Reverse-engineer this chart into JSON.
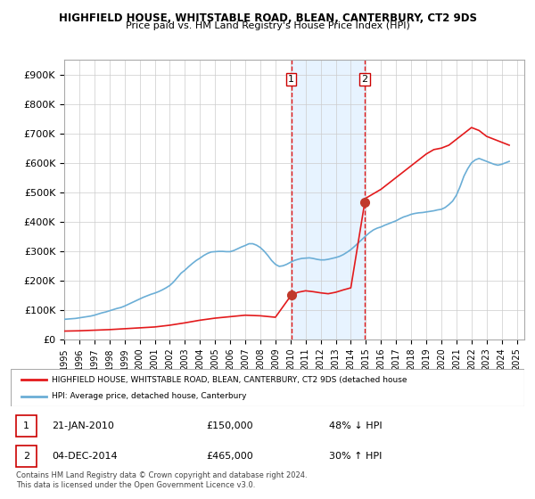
{
  "title": "HIGHFIELD HOUSE, WHITSTABLE ROAD, BLEAN, CANTERBURY, CT2 9DS",
  "subtitle": "Price paid vs. HM Land Registry's House Price Index (HPI)",
  "ylabel_ticks": [
    "£0",
    "£100K",
    "£200K",
    "£300K",
    "£400K",
    "£500K",
    "£600K",
    "£700K",
    "£800K",
    "£900K"
  ],
  "ytick_values": [
    0,
    100000,
    200000,
    300000,
    400000,
    500000,
    600000,
    700000,
    800000,
    900000
  ],
  "ylim": [
    0,
    950000
  ],
  "xlim_start": 1995.0,
  "xlim_end": 2025.5,
  "transaction1_x": 2010.05,
  "transaction1_y": 150000,
  "transaction1_label": "1",
  "transaction2_x": 2014.92,
  "transaction2_y": 465000,
  "transaction2_label": "2",
  "hpi_line_color": "#6baed6",
  "price_line_color": "#e31a1c",
  "transaction_dot_color": "#c0392b",
  "highlight_fill": "#ddeeff",
  "highlight_alpha": 0.35,
  "grid_color": "#cccccc",
  "legend_box_color": "#cc0000",
  "legend1_text": "HIGHFIELD HOUSE, WHITSTABLE ROAD, BLEAN, CANTERBURY, CT2 9DS (detached house",
  "legend2_text": "HPI: Average price, detached house, Canterbury",
  "table_row1": [
    "1",
    "21-JAN-2010",
    "£150,000",
    "48% ↓ HPI"
  ],
  "table_row2": [
    "2",
    "04-DEC-2014",
    "£465,000",
    "30% ↑ HPI"
  ],
  "footer": "Contains HM Land Registry data © Crown copyright and database right 2024.\nThis data is licensed under the Open Government Licence v3.0.",
  "hpi_data_x": [
    1995.0,
    1995.25,
    1995.5,
    1995.75,
    1996.0,
    1996.25,
    1996.5,
    1996.75,
    1997.0,
    1997.25,
    1997.5,
    1997.75,
    1998.0,
    1998.25,
    1998.5,
    1998.75,
    1999.0,
    1999.25,
    1999.5,
    1999.75,
    2000.0,
    2000.25,
    2000.5,
    2000.75,
    2001.0,
    2001.25,
    2001.5,
    2001.75,
    2002.0,
    2002.25,
    2002.5,
    2002.75,
    2003.0,
    2003.25,
    2003.5,
    2003.75,
    2004.0,
    2004.25,
    2004.5,
    2004.75,
    2005.0,
    2005.25,
    2005.5,
    2005.75,
    2006.0,
    2006.25,
    2006.5,
    2006.75,
    2007.0,
    2007.25,
    2007.5,
    2007.75,
    2008.0,
    2008.25,
    2008.5,
    2008.75,
    2009.0,
    2009.25,
    2009.5,
    2009.75,
    2010.0,
    2010.25,
    2010.5,
    2010.75,
    2011.0,
    2011.25,
    2011.5,
    2011.75,
    2012.0,
    2012.25,
    2012.5,
    2012.75,
    2013.0,
    2013.25,
    2013.5,
    2013.75,
    2014.0,
    2014.25,
    2014.5,
    2014.75,
    2015.0,
    2015.25,
    2015.5,
    2015.75,
    2016.0,
    2016.25,
    2016.5,
    2016.75,
    2017.0,
    2017.25,
    2017.5,
    2017.75,
    2018.0,
    2018.25,
    2018.5,
    2018.75,
    2019.0,
    2019.25,
    2019.5,
    2019.75,
    2020.0,
    2020.25,
    2020.5,
    2020.75,
    2021.0,
    2021.25,
    2021.5,
    2021.75,
    2022.0,
    2022.25,
    2022.5,
    2022.75,
    2023.0,
    2023.25,
    2023.5,
    2023.75,
    2024.0,
    2024.25,
    2024.5
  ],
  "hpi_data_y": [
    68000,
    69000,
    70000,
    71000,
    73000,
    75000,
    77000,
    79000,
    82000,
    86000,
    90000,
    93000,
    97000,
    101000,
    105000,
    108000,
    113000,
    119000,
    125000,
    131000,
    137000,
    143000,
    148000,
    153000,
    157000,
    162000,
    168000,
    175000,
    183000,
    195000,
    210000,
    225000,
    235000,
    247000,
    258000,
    268000,
    276000,
    285000,
    292000,
    297000,
    298000,
    299000,
    299000,
    298000,
    298000,
    302000,
    308000,
    314000,
    319000,
    325000,
    325000,
    320000,
    312000,
    300000,
    285000,
    268000,
    255000,
    248000,
    250000,
    255000,
    262000,
    268000,
    272000,
    275000,
    276000,
    277000,
    275000,
    272000,
    270000,
    270000,
    272000,
    275000,
    278000,
    282000,
    288000,
    296000,
    305000,
    316000,
    328000,
    340000,
    352000,
    363000,
    372000,
    378000,
    382000,
    388000,
    393000,
    398000,
    403000,
    410000,
    416000,
    420000,
    425000,
    428000,
    430000,
    431000,
    433000,
    435000,
    437000,
    440000,
    442000,
    448000,
    458000,
    470000,
    490000,
    520000,
    555000,
    580000,
    600000,
    610000,
    615000,
    610000,
    605000,
    600000,
    595000,
    592000,
    595000,
    600000,
    605000
  ],
  "price_data_x": [
    1995.0,
    1996.0,
    1997.0,
    1998.0,
    1999.0,
    2000.0,
    2001.0,
    2002.0,
    2003.0,
    2004.0,
    2005.0,
    2006.0,
    2007.0,
    2008.0,
    2009.0,
    2010.05,
    2010.5,
    2011.0,
    2011.5,
    2012.0,
    2012.5,
    2013.0,
    2013.5,
    2014.0,
    2014.92,
    2015.0,
    2015.5,
    2016.0,
    2016.5,
    2017.0,
    2017.5,
    2018.0,
    2018.5,
    2019.0,
    2019.5,
    2020.0,
    2020.5,
    2021.0,
    2021.5,
    2022.0,
    2022.5,
    2023.0,
    2023.5,
    2024.0,
    2024.5
  ],
  "price_data_y": [
    28000,
    29000,
    31000,
    33000,
    36000,
    39000,
    42000,
    48000,
    56000,
    65000,
    72000,
    77000,
    82000,
    80000,
    75000,
    150000,
    160000,
    165000,
    162000,
    158000,
    155000,
    160000,
    168000,
    175000,
    465000,
    480000,
    495000,
    510000,
    530000,
    550000,
    570000,
    590000,
    610000,
    630000,
    645000,
    650000,
    660000,
    680000,
    700000,
    720000,
    710000,
    690000,
    680000,
    670000,
    660000
  ]
}
